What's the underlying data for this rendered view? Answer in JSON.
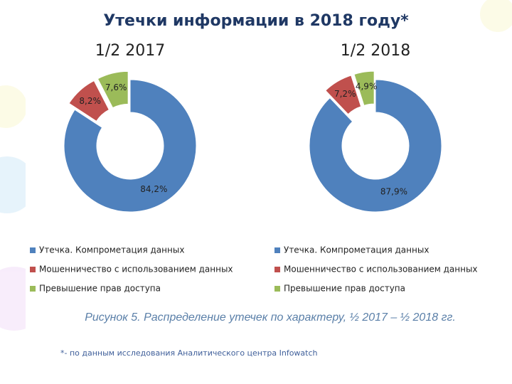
{
  "title": "Утечки информации в 2018 году*",
  "caption": "Рисунок 5. Распределение утечек по характеру, ½ 2017 – ½ 2018 гг.",
  "footnote": "*- по данным исследования Аналитического центра Infowatch",
  "chart_data": [
    {
      "type": "donut",
      "title": "1/2 2017",
      "categories": [
        "Утечка. Компрометация данных",
        "Мошенничество с использованием данных",
        "Превышение прав доступа"
      ],
      "values": [
        84.2,
        8.2,
        7.6
      ],
      "value_labels": [
        "84,2%",
        "8,2%",
        "7,6%"
      ],
      "colors": [
        "#4f81bd",
        "#c0504d",
        "#9bbb59"
      ]
    },
    {
      "type": "donut",
      "title": "1/2 2018",
      "categories": [
        "Утечка. Компрометация данных",
        "Мошенничество с использованием данных",
        "Превышение прав доступа"
      ],
      "values": [
        87.9,
        7.2,
        4.9
      ],
      "value_labels": [
        "87,9%",
        "7,2%",
        "4,9%"
      ],
      "colors": [
        "#4f81bd",
        "#c0504d",
        "#9bbb59"
      ]
    }
  ]
}
